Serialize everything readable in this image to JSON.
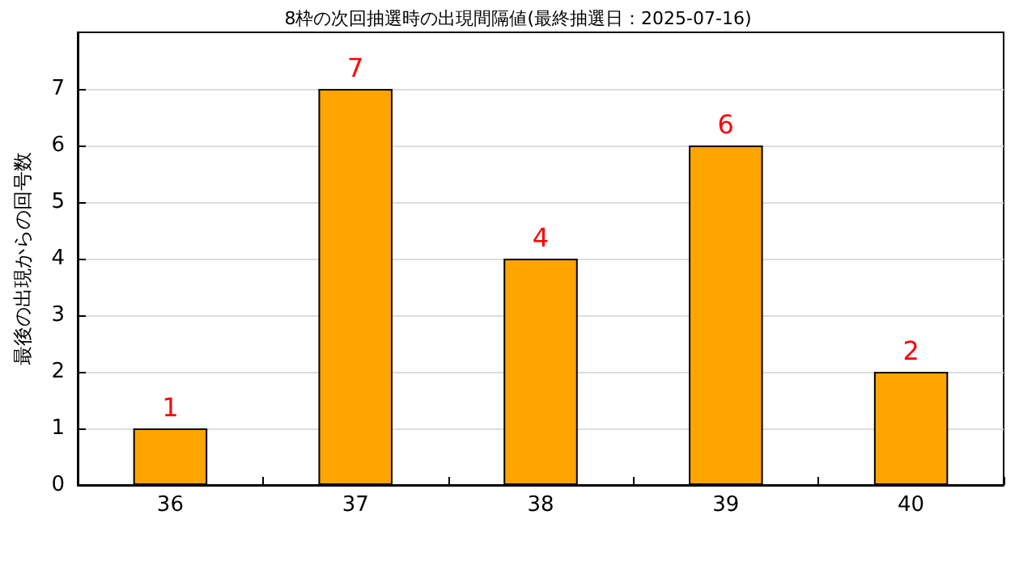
{
  "chart_data": {
    "type": "bar",
    "title": "8枠の次回抽選時の出現間隔値(最終抽選日：2025-07-16)",
    "ylabel": "最後の出現からの回号数",
    "categories": [
      "36",
      "37",
      "38",
      "39",
      "40"
    ],
    "values": [
      1,
      7,
      4,
      6,
      2
    ],
    "color": "#ffa500",
    "ylim": [
      0,
      8
    ],
    "yticks": [
      0,
      1,
      2,
      3,
      4,
      5,
      6,
      7
    ],
    "grid": "y",
    "data_labels": true
  }
}
